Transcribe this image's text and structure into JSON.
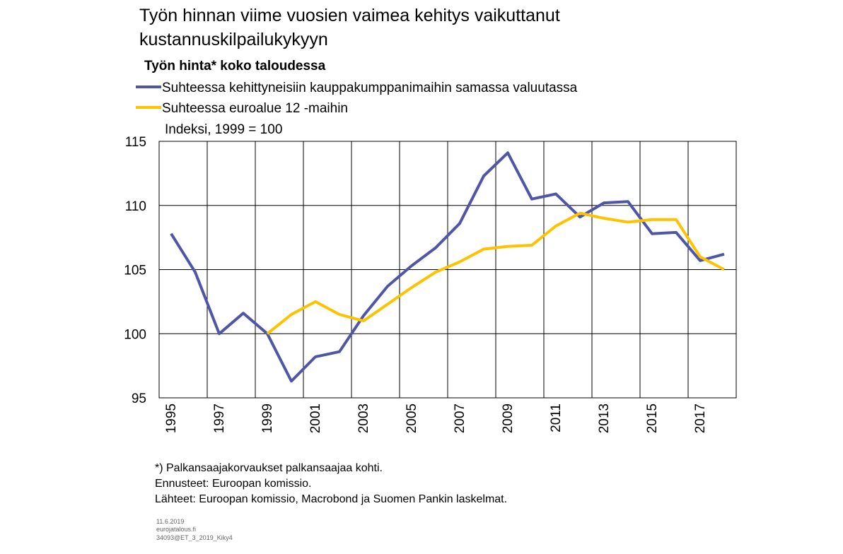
{
  "chart_data": {
    "type": "line",
    "title": [
      "Työn hinnan viime vuosien vaimea kehitys vaikuttanut",
      "kustannuskilpailukykyyn"
    ],
    "subtitle": "Työn hinta* koko taloudessa",
    "y_label": "Indeksi, 1999 = 100",
    "categories": [
      "1995",
      null,
      "1997",
      null,
      "1999",
      null,
      "2001",
      null,
      "2003",
      null,
      "2005",
      null,
      "2007",
      null,
      "2009",
      null,
      "2011",
      null,
      "2013",
      null,
      "2015",
      null,
      "2017",
      null
    ],
    "series": [
      {
        "name": "Suhteessa kehittyneisiin kauppakumppanimaihin samassa valuutassa",
        "color": "#4f56a5",
        "values": [
          107.8,
          104.8,
          100.0,
          101.6,
          100.0,
          96.3,
          98.2,
          98.6,
          101.4,
          103.7,
          105.3,
          106.7,
          108.6,
          112.3,
          114.1,
          110.5,
          110.9,
          109.1,
          110.2,
          110.3,
          107.8,
          107.9,
          105.7,
          106.2
        ]
      },
      {
        "name": "Suhteessa euroalue 12 -maihin",
        "color": "#fdc200",
        "values": [
          null,
          null,
          null,
          null,
          100.0,
          101.5,
          102.5,
          101.5,
          101.0,
          102.3,
          103.6,
          104.8,
          105.6,
          106.6,
          106.8,
          106.9,
          108.4,
          109.4,
          109.0,
          108.7,
          108.9,
          108.9,
          106.0,
          105.0
        ]
      }
    ],
    "ylim": [
      95,
      115
    ],
    "yticks": [
      95,
      100,
      105,
      110,
      115
    ],
    "grid": true,
    "notes": [
      "*) Palkansaajakorvaukset palkansaajaa kohti.",
      "Ennusteet: Euroopan komissio.",
      "Lähteet: Euroopan komissio, Macrobond ja Suomen Pankin laskelmat."
    ],
    "credits": [
      "11.6.2019",
      "eurojatalous.fi",
      "34093@ET_3_2019_Kiky4"
    ]
  }
}
